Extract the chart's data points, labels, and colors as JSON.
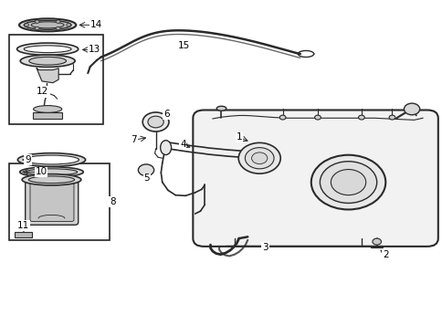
{
  "bg_color": "#ffffff",
  "line_color": "#2a2a2a",
  "fig_width": 4.85,
  "fig_height": 3.57,
  "dpi": 100,
  "label_positions": {
    "14": [
      0.175,
      0.925,
      0.13,
      0.925
    ],
    "13": [
      0.193,
      0.845,
      0.148,
      0.845
    ],
    "12": [
      0.095,
      0.72,
      0.095,
      0.72
    ],
    "9": [
      0.058,
      0.478,
      0.1,
      0.478
    ],
    "10": [
      0.085,
      0.44,
      0.13,
      0.44
    ],
    "11": [
      0.048,
      0.318,
      0.048,
      0.305
    ],
    "8": [
      0.24,
      0.38,
      0.255,
      0.38
    ],
    "6": [
      0.352,
      0.63,
      0.352,
      0.645
    ],
    "7": [
      0.32,
      0.575,
      0.305,
      0.565
    ],
    "5": [
      0.325,
      0.465,
      0.325,
      0.45
    ],
    "4": [
      0.43,
      0.54,
      0.415,
      0.555
    ],
    "15": [
      0.415,
      0.88,
      0.415,
      0.862
    ],
    "1": [
      0.56,
      0.565,
      0.54,
      0.578
    ],
    "3": [
      0.6,
      0.26,
      0.6,
      0.242
    ],
    "2": [
      0.855,
      0.23,
      0.87,
      0.218
    ]
  }
}
